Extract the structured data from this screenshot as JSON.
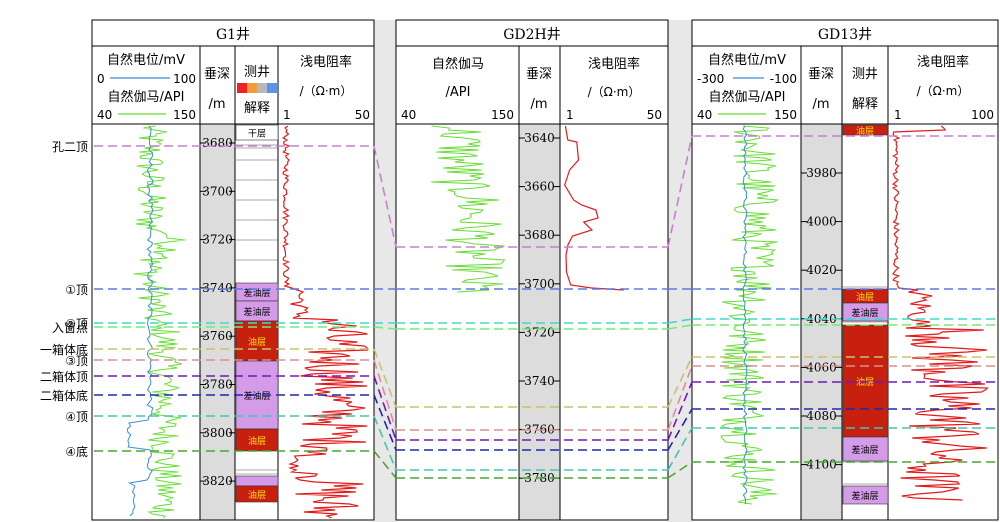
{
  "wells": [
    {
      "name": "G1井",
      "headers": {
        "sp_label": "自然电位/mV",
        "sp_min": "0",
        "sp_max": "100",
        "gr_label": "自然伽马/API",
        "gr_min": "40",
        "gr_max": "150",
        "depth_top": "垂深",
        "depth_bottom": "/m",
        "interp_top": "测井",
        "interp_bottom": "解释",
        "res_label": "浅电阻率",
        "res_unit": "/（Ω·m）",
        "res_min": "1",
        "res_max": "50"
      },
      "depth_ticks": [
        "3680",
        "3700",
        "3720",
        "3740",
        "3760",
        "3780",
        "3800",
        "3820"
      ],
      "interp_labels": {
        "dry": "干层",
        "poor": "差油层",
        "oil": "油层"
      }
    },
    {
      "name": "GD2H井",
      "headers": {
        "gr_label": "自然伽马",
        "gr_unit": "/API",
        "gr_min": "40",
        "gr_max": "150",
        "depth_top": "垂深",
        "depth_bottom": "/m",
        "res_label": "浅电阻率",
        "res_unit": "/（Ω·m）",
        "res_min": "1",
        "res_max": "50"
      },
      "depth_ticks": [
        "3640",
        "3660",
        "3680",
        "3700",
        "3720",
        "3740",
        "3760",
        "3780"
      ]
    },
    {
      "name": "GD13井",
      "headers": {
        "sp_label": "自然电位/mV",
        "sp_min": "-300",
        "sp_max": "-100",
        "gr_label": "自然伽马/API",
        "gr_min": "40",
        "gr_max": "150",
        "depth_top": "垂深",
        "depth_bottom": "/m",
        "interp_top": "测井",
        "interp_bottom": "解释",
        "res_label": "浅电阻率",
        "res_unit": "/（Ω·m）",
        "res_min": "1",
        "res_max": "100"
      },
      "depth_ticks": [
        "3980",
        "4000",
        "4020",
        "4040",
        "4060",
        "4080",
        "4100"
      ],
      "interp_labels": {
        "oil": "油层",
        "poor": "差油层"
      }
    }
  ],
  "markers": [
    {
      "label": "孔二顶",
      "color": "#c77fd0"
    },
    {
      "label": "①顶",
      "color": "#5a7be0"
    },
    {
      "label": "②顶",
      "color": "#40d8c8"
    },
    {
      "label": "入窗点",
      "color": "#78e878"
    },
    {
      "label": "一箱体底",
      "color": "#c8c070"
    },
    {
      "label": "③顶",
      "color": "#d89090"
    },
    {
      "label": "二箱体顶",
      "color": "#7018b8"
    },
    {
      "label": "二箱体底",
      "color": "#2028a8"
    },
    {
      "label": "④顶",
      "color": "#40c8b0"
    },
    {
      "label": "④底",
      "color": "#48a830"
    }
  ],
  "colors": {
    "sp": "#3c8cd8",
    "gr": "#66dd33",
    "res": "#e41a1a",
    "oil": "#c8200f",
    "poor": "#d49ce8",
    "dry": "#ffffff",
    "depth_track": "#dcdcdc",
    "gap": "#e8e8e8"
  }
}
